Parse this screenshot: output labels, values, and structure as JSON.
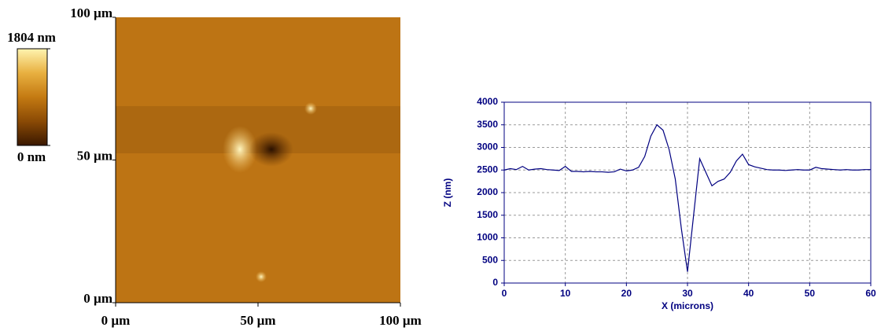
{
  "chart_data": [
    {
      "type": "heatmap",
      "xlim": [
        0,
        100
      ],
      "xticks": [
        {
          "value": 0,
          "label": "0 µm"
        },
        {
          "value": 50,
          "label": "50 µm"
        },
        {
          "value": 100,
          "label": "100 µm"
        }
      ],
      "ylim": [
        0,
        100
      ],
      "yticks": [
        {
          "value": 0,
          "label": "0 µm"
        },
        {
          "value": 50,
          "label": "50 µm"
        },
        {
          "value": 100,
          "label": "100 µm"
        }
      ],
      "colorbar": {
        "lim": [
          0,
          1804
        ],
        "ticks": [
          {
            "value": 0,
            "label": "0 nm"
          },
          {
            "value": 1804,
            "label": "1804 nm"
          }
        ],
        "colors": [
          "#3a1800",
          "#8a4a05",
          "#c47a12",
          "#e8b040",
          "#fff4b0"
        ]
      }
    },
    {
      "type": "line",
      "xlabel": "X (microns)",
      "ylabel": "Z (nm)",
      "x": [
        0,
        1,
        2,
        3,
        4,
        5,
        6,
        7,
        8,
        9,
        10,
        11,
        12,
        13,
        14,
        15,
        16,
        17,
        18,
        19,
        20,
        21,
        22,
        23,
        24,
        25,
        26,
        27,
        28,
        29,
        30,
        31,
        32,
        33,
        34,
        35,
        36,
        37,
        38,
        39,
        40,
        41,
        42,
        43,
        44,
        45,
        46,
        47,
        48,
        49,
        50,
        51,
        52,
        53,
        54,
        55,
        56,
        57,
        58,
        59,
        60
      ],
      "series": [
        {
          "color": "#000080",
          "values": [
            2500,
            2530,
            2510,
            2580,
            2500,
            2520,
            2530,
            2510,
            2500,
            2490,
            2580,
            2470,
            2470,
            2460,
            2470,
            2460,
            2460,
            2450,
            2460,
            2520,
            2480,
            2500,
            2560,
            2800,
            3250,
            3500,
            3380,
            2950,
            2300,
            1200,
            250,
            1500,
            2750,
            2450,
            2150,
            2250,
            2300,
            2450,
            2700,
            2850,
            2620,
            2570,
            2540,
            2510,
            2500,
            2500,
            2490,
            2500,
            2510,
            2500,
            2500,
            2560,
            2530,
            2520,
            2510,
            2500,
            2510,
            2500,
            2500,
            2510,
            2510
          ]
        }
      ],
      "xlim": [
        0,
        60
      ],
      "xticks": [
        0,
        10,
        20,
        30,
        40,
        50,
        60
      ],
      "ylim": [
        0,
        4000
      ],
      "yticks": [
        0,
        500,
        1000,
        1500,
        2000,
        2500,
        3000,
        3500,
        4000
      ],
      "grid": true
    }
  ]
}
